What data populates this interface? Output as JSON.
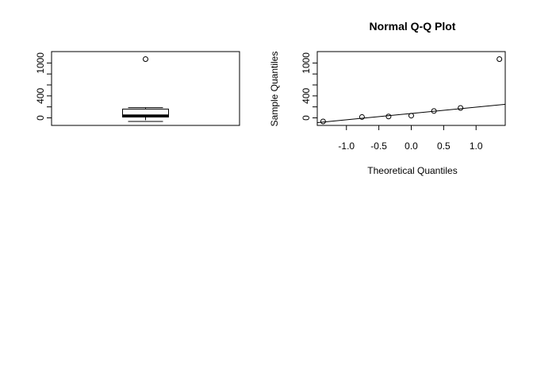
{
  "colors": {
    "ink": "#000000",
    "background": "#ffffff"
  },
  "chart_data": [
    {
      "type": "boxplot",
      "title": "",
      "xlabel": "",
      "ylabel": "",
      "ylim": [
        -80,
        1150
      ],
      "yticks": [
        0,
        200,
        400,
        600,
        800,
        1000
      ],
      "yticklabels": [
        "0",
        "",
        "400",
        "",
        "",
        "1000"
      ],
      "box": {
        "whisker_low": -65,
        "q1": 15,
        "median": 40,
        "q3": 160,
        "whisker_high": 185
      },
      "outliers": [
        1070
      ]
    },
    {
      "type": "scatter",
      "title": "Normal Q-Q Plot",
      "xlabel": "Theoretical Quantiles",
      "ylabel": "Sample Quantiles",
      "xlim": [
        -1.45,
        1.45
      ],
      "ylim": [
        -80,
        1150
      ],
      "xticks": [
        -1.0,
        -0.5,
        0.0,
        0.5,
        1.0
      ],
      "xticklabels": [
        "-1.0",
        "-0.5",
        "0.0",
        "0.5",
        "1.0"
      ],
      "yticks": [
        0,
        200,
        400,
        600,
        800,
        1000
      ],
      "yticklabels": [
        "0",
        "",
        "400",
        "",
        "",
        "1000"
      ],
      "points": [
        {
          "x": -1.36,
          "y": -65
        },
        {
          "x": -0.76,
          "y": 15
        },
        {
          "x": -0.35,
          "y": 25
        },
        {
          "x": 0.0,
          "y": 40
        },
        {
          "x": 0.35,
          "y": 125
        },
        {
          "x": 0.76,
          "y": 180
        },
        {
          "x": 1.36,
          "y": 1070
        }
      ],
      "qq_line": {
        "intercept": 80,
        "slope": 115
      }
    }
  ]
}
